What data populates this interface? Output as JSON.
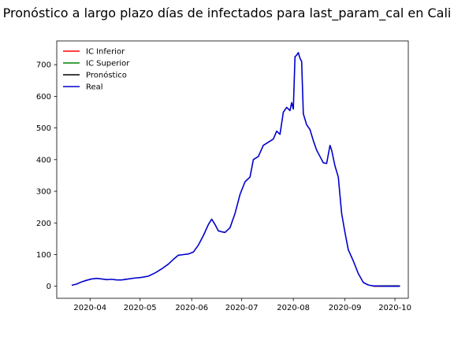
{
  "chart_data": {
    "type": "line",
    "title": "Pronóstico a largo plazo días de infectados para last_param_cal en Cali",
    "xlabel": "",
    "ylabel": "",
    "x_range": [
      "2020-03-12",
      "2020-10-09"
    ],
    "ylim": [
      -38,
      775
    ],
    "x_ticks": [
      {
        "date": "2020-04-01",
        "label": "2020-04"
      },
      {
        "date": "2020-05-01",
        "label": "2020-05"
      },
      {
        "date": "2020-06-01",
        "label": "2020-06"
      },
      {
        "date": "2020-07-01",
        "label": "2020-07"
      },
      {
        "date": "2020-08-01",
        "label": "2020-08"
      },
      {
        "date": "2020-09-01",
        "label": "2020-09"
      },
      {
        "date": "2020-10-01",
        "label": "2020-10"
      }
    ],
    "y_ticks": [
      0,
      100,
      200,
      300,
      400,
      500,
      600,
      700
    ],
    "grid": false,
    "legend_position": "top-left",
    "series": [
      {
        "name": "IC Inferior",
        "color": "#ff0000",
        "x": [
          "2020-09-18",
          "2020-09-20",
          "2020-09-22",
          "2020-09-24",
          "2020-09-26",
          "2020-09-28",
          "2020-09-30",
          "2020-10-02",
          "2020-10-04"
        ],
        "y": [
          0,
          0,
          0,
          0,
          0,
          0,
          0,
          0,
          0
        ]
      },
      {
        "name": "IC Superior",
        "color": "#008000",
        "x": [
          "2020-09-18",
          "2020-09-20",
          "2020-09-22",
          "2020-09-24",
          "2020-09-26",
          "2020-09-28",
          "2020-09-30",
          "2020-10-02",
          "2020-10-04"
        ],
        "y": [
          1,
          1,
          1,
          1,
          1,
          1,
          1,
          1,
          1
        ]
      },
      {
        "name": "Pronóstico",
        "color": "#000000",
        "x": [
          "2020-09-18",
          "2020-09-20",
          "2020-09-22",
          "2020-09-24",
          "2020-09-26",
          "2020-09-28",
          "2020-09-30",
          "2020-10-02",
          "2020-10-04"
        ],
        "y": [
          1,
          1,
          1,
          1,
          1,
          1,
          1,
          1,
          1
        ]
      },
      {
        "name": "Real",
        "color": "#0000cc",
        "x": [
          "2020-03-21",
          "2020-03-24",
          "2020-03-27",
          "2020-03-30",
          "2020-04-02",
          "2020-04-05",
          "2020-04-08",
          "2020-04-11",
          "2020-04-14",
          "2020-04-17",
          "2020-04-20",
          "2020-04-24",
          "2020-04-28",
          "2020-05-02",
          "2020-05-06",
          "2020-05-10",
          "2020-05-14",
          "2020-05-18",
          "2020-05-21",
          "2020-05-24",
          "2020-05-27",
          "2020-05-30",
          "2020-06-02",
          "2020-06-05",
          "2020-06-08",
          "2020-06-11",
          "2020-06-13",
          "2020-06-15",
          "2020-06-17",
          "2020-06-19",
          "2020-06-21",
          "2020-06-24",
          "2020-06-27",
          "2020-06-30",
          "2020-07-03",
          "2020-07-06",
          "2020-07-08",
          "2020-07-11",
          "2020-07-14",
          "2020-07-17",
          "2020-07-20",
          "2020-07-22",
          "2020-07-24",
          "2020-07-26",
          "2020-07-28",
          "2020-07-30",
          "2020-07-31",
          "2020-08-01",
          "2020-08-02",
          "2020-08-03",
          "2020-08-04",
          "2020-08-05",
          "2020-08-06",
          "2020-08-07",
          "2020-08-09",
          "2020-08-11",
          "2020-08-13",
          "2020-08-15",
          "2020-08-17",
          "2020-08-19",
          "2020-08-21",
          "2020-08-23",
          "2020-08-24",
          "2020-08-26",
          "2020-08-28",
          "2020-08-30",
          "2020-09-01",
          "2020-09-03",
          "2020-09-06",
          "2020-09-09",
          "2020-09-12",
          "2020-09-15",
          "2020-09-18",
          "2020-09-21",
          "2020-09-25",
          "2020-10-01",
          "2020-10-04"
        ],
        "y": [
          3,
          7,
          14,
          19,
          23,
          25,
          23,
          21,
          22,
          20,
          20,
          23,
          26,
          28,
          32,
          42,
          55,
          70,
          85,
          98,
          100,
          102,
          108,
          130,
          160,
          195,
          212,
          195,
          175,
          172,
          170,
          185,
          230,
          290,
          330,
          345,
          400,
          410,
          445,
          455,
          465,
          490,
          480,
          550,
          565,
          555,
          580,
          560,
          725,
          730,
          738,
          720,
          710,
          545,
          510,
          495,
          460,
          430,
          410,
          390,
          388,
          445,
          430,
          380,
          345,
          230,
          170,
          115,
          80,
          40,
          12,
          4,
          1,
          1,
          0,
          0,
          0
        ]
      }
    ]
  }
}
